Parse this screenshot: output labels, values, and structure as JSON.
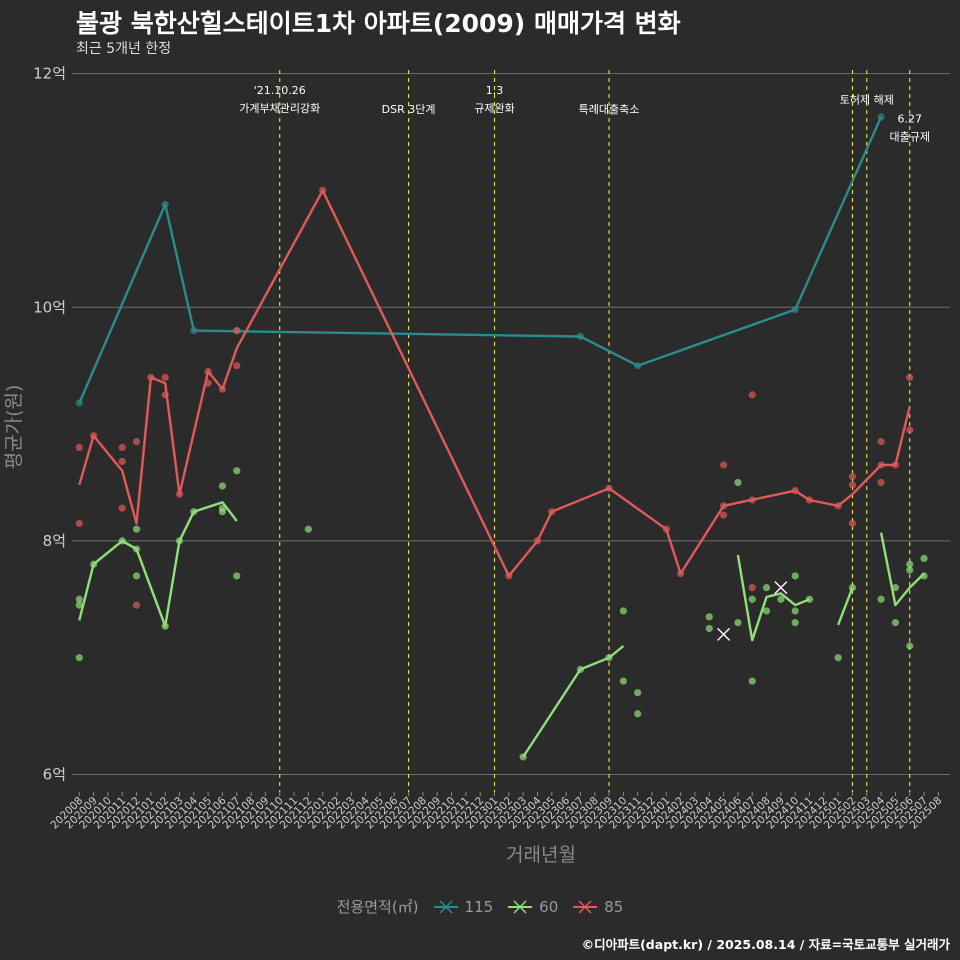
{
  "title": "불광 북한산힐스테이트1차 아파트(2009) 매매가격 변화",
  "subtitle": "최근 5개년 한정",
  "caption": "©디아파트(dapt.kr) / 2025.08.14 / 자료=국토교통부 실거래가",
  "chart_data": {
    "type": "line",
    "xlabel": "거래년월",
    "ylabel": "평균가(원)",
    "ylim": [
      5.85,
      12.1
    ],
    "yticks": [
      {
        "value": 6,
        "label": "6억"
      },
      {
        "value": 8,
        "label": "8억"
      },
      {
        "value": 10,
        "label": "10억"
      },
      {
        "value": 12,
        "label": "12억"
      }
    ],
    "categories": [
      "202008",
      "202009",
      "202010",
      "202011",
      "202012",
      "202101",
      "202102",
      "202103",
      "202104",
      "202105",
      "202106",
      "202107",
      "202108",
      "202109",
      "202110",
      "202111",
      "202112",
      "202201",
      "202202",
      "202203",
      "202204",
      "202205",
      "202206",
      "202207",
      "202208",
      "202209",
      "202210",
      "202211",
      "202212",
      "202301",
      "202302",
      "202303",
      "202304",
      "202305",
      "202306",
      "202307",
      "202308",
      "202309",
      "202310",
      "202311",
      "202312",
      "202401",
      "202402",
      "202403",
      "202404",
      "202405",
      "202406",
      "202407",
      "202408",
      "202409",
      "202410",
      "202411",
      "202412",
      "202501",
      "202502",
      "202503",
      "202504",
      "202505",
      "202506",
      "202507",
      "202508"
    ],
    "legend_title": "전용면적(㎡)",
    "series": [
      {
        "name": "115",
        "color": "#2a8c8c",
        "line": [
          [
            "202008",
            9.18
          ],
          [
            "202102",
            10.88
          ],
          [
            "202104",
            9.8
          ],
          [
            "202307",
            9.75
          ],
          [
            "202311",
            9.5
          ],
          [
            "202410",
            9.98
          ],
          [
            "202504",
            11.63
          ]
        ],
        "points": [
          [
            "202008",
            9.18
          ],
          [
            "202102",
            10.88
          ],
          [
            "202104",
            9.8
          ],
          [
            "202107",
            9.8
          ],
          [
            "202307",
            9.75
          ],
          [
            "202311",
            9.5
          ],
          [
            "202410",
            9.98
          ],
          [
            "202504",
            11.63
          ]
        ],
        "cross": []
      },
      {
        "name": "60",
        "color": "#90e07a",
        "line": [
          [
            "202008",
            7.32
          ],
          [
            "202009",
            7.8
          ],
          [
            "202011",
            8.0
          ],
          [
            "202012",
            7.93
          ],
          [
            "202102",
            7.27
          ],
          [
            "202103",
            8.0
          ],
          [
            "202104",
            8.25
          ],
          [
            "202106",
            8.33
          ],
          [
            "202107",
            8.17
          ]
        ],
        "line2": [
          [
            "202303",
            6.15
          ],
          [
            "202307",
            6.9
          ],
          [
            "202309",
            7.0
          ],
          [
            "202310",
            7.1
          ]
        ],
        "line3": [
          [
            "202406",
            7.88
          ],
          [
            "202407",
            7.15
          ],
          [
            "202408",
            7.52
          ],
          [
            "202409",
            7.55
          ],
          [
            "202410",
            7.45
          ],
          [
            "202411",
            7.5
          ]
        ],
        "line4": [
          [
            "202501",
            7.28
          ],
          [
            "202502",
            7.6
          ]
        ],
        "line5": [
          [
            "202504",
            8.07
          ],
          [
            "202505",
            7.45
          ],
          [
            "202506",
            7.6
          ],
          [
            "202507",
            7.72
          ]
        ],
        "points": [
          [
            "202008",
            7.0
          ],
          [
            "202008",
            7.45
          ],
          [
            "202008",
            7.5
          ],
          [
            "202009",
            7.8
          ],
          [
            "202011",
            8.0
          ],
          [
            "202012",
            7.7
          ],
          [
            "202012",
            7.93
          ],
          [
            "202012",
            8.1
          ],
          [
            "202102",
            7.27
          ],
          [
            "202103",
            8.0
          ],
          [
            "202104",
            8.25
          ],
          [
            "202106",
            8.25
          ],
          [
            "202106",
            8.28
          ],
          [
            "202106",
            8.47
          ],
          [
            "202107",
            7.7
          ],
          [
            "202107",
            8.6
          ],
          [
            "202112",
            8.1
          ],
          [
            "202303",
            6.15
          ],
          [
            "202307",
            6.9
          ],
          [
            "202309",
            7.0
          ],
          [
            "202310",
            6.8
          ],
          [
            "202310",
            7.4
          ],
          [
            "202311",
            6.52
          ],
          [
            "202311",
            6.7
          ],
          [
            "202404",
            7.25
          ],
          [
            "202404",
            7.35
          ],
          [
            "202406",
            7.3
          ],
          [
            "202406",
            8.5
          ],
          [
            "202407",
            6.8
          ],
          [
            "202407",
            7.5
          ],
          [
            "202408",
            7.4
          ],
          [
            "202408",
            7.6
          ],
          [
            "202409",
            7.5
          ],
          [
            "202410",
            7.3
          ],
          [
            "202410",
            7.4
          ],
          [
            "202410",
            7.7
          ],
          [
            "202411",
            7.5
          ],
          [
            "202501",
            7.0
          ],
          [
            "202502",
            7.6
          ],
          [
            "202504",
            7.5
          ],
          [
            "202505",
            7.3
          ],
          [
            "202505",
            7.6
          ],
          [
            "202506",
            7.1
          ],
          [
            "202506",
            7.75
          ],
          [
            "202506",
            7.8
          ],
          [
            "202507",
            7.7
          ],
          [
            "202507",
            7.85
          ]
        ],
        "cross": [
          [
            "202405",
            7.2
          ],
          [
            "202409",
            7.6
          ]
        ]
      },
      {
        "name": "85",
        "color": "#e05a5a",
        "line": [
          [
            "202008",
            8.48
          ],
          [
            "202009",
            8.9
          ],
          [
            "202011",
            8.6
          ],
          [
            "202012",
            8.15
          ],
          [
            "202101",
            9.4
          ],
          [
            "202102",
            9.35
          ],
          [
            "202103",
            8.4
          ],
          [
            "202105",
            9.45
          ],
          [
            "202106",
            9.3
          ],
          [
            "202107",
            9.65
          ],
          [
            "202201",
            11.0
          ],
          [
            "202302",
            7.7
          ],
          [
            "202304",
            8.0
          ],
          [
            "202305",
            8.25
          ],
          [
            "202309",
            8.45
          ],
          [
            "202401",
            8.1
          ],
          [
            "202402",
            7.72
          ],
          [
            "202405",
            8.3
          ],
          [
            "202410",
            8.43
          ],
          [
            "202411",
            8.35
          ],
          [
            "202501",
            8.3
          ],
          [
            "202502",
            8.4
          ],
          [
            "202504",
            8.65
          ],
          [
            "202505",
            8.65
          ],
          [
            "202506",
            9.15
          ]
        ],
        "points": [
          [
            "202008",
            8.15
          ],
          [
            "202008",
            8.8
          ],
          [
            "202009",
            8.9
          ],
          [
            "202011",
            8.28
          ],
          [
            "202011",
            8.68
          ],
          [
            "202011",
            8.8
          ],
          [
            "202012",
            7.45
          ],
          [
            "202012",
            8.85
          ],
          [
            "202101",
            9.4
          ],
          [
            "202102",
            9.25
          ],
          [
            "202102",
            9.4
          ],
          [
            "202103",
            8.4
          ],
          [
            "202105",
            9.45
          ],
          [
            "202105",
            9.35
          ],
          [
            "202106",
            9.3
          ],
          [
            "202107",
            9.8
          ],
          [
            "202107",
            9.5
          ],
          [
            "202201",
            11.0
          ],
          [
            "202302",
            7.7
          ],
          [
            "202304",
            8.0
          ],
          [
            "202305",
            8.25
          ],
          [
            "202309",
            8.45
          ],
          [
            "202401",
            8.1
          ],
          [
            "202402",
            7.72
          ],
          [
            "202405",
            8.22
          ],
          [
            "202405",
            8.3
          ],
          [
            "202405",
            8.65
          ],
          [
            "202407",
            7.6
          ],
          [
            "202407",
            8.35
          ],
          [
            "202407",
            9.25
          ],
          [
            "202410",
            8.43
          ],
          [
            "202411",
            8.35
          ],
          [
            "202501",
            8.3
          ],
          [
            "202502",
            8.15
          ],
          [
            "202502",
            8.48
          ],
          [
            "202502",
            8.55
          ],
          [
            "202504",
            8.5
          ],
          [
            "202504",
            8.65
          ],
          [
            "202504",
            8.85
          ],
          [
            "202505",
            8.65
          ],
          [
            "202506",
            8.95
          ],
          [
            "202506",
            9.4
          ]
        ],
        "cross": []
      }
    ],
    "annotations": [
      {
        "month": "202110",
        "lines": [
          "'21.10.26",
          "가계부채관리강화"
        ],
        "level": 0
      },
      {
        "month": "202207",
        "lines": [
          "DSR 3단계"
        ],
        "level": 1
      },
      {
        "month": "202301",
        "lines": [
          "1.3",
          "규제완화"
        ],
        "level": 0
      },
      {
        "month": "202309",
        "lines": [
          "특례대출축소"
        ],
        "level": 1
      },
      {
        "month": "202502",
        "lines": [],
        "level": 0
      },
      {
        "month": "202503",
        "lines": [
          "토허제 해제"
        ],
        "level": 0.5
      },
      {
        "month": "202506",
        "lines": [
          "6.27",
          "대출규제"
        ],
        "level": 1.5
      }
    ]
  }
}
